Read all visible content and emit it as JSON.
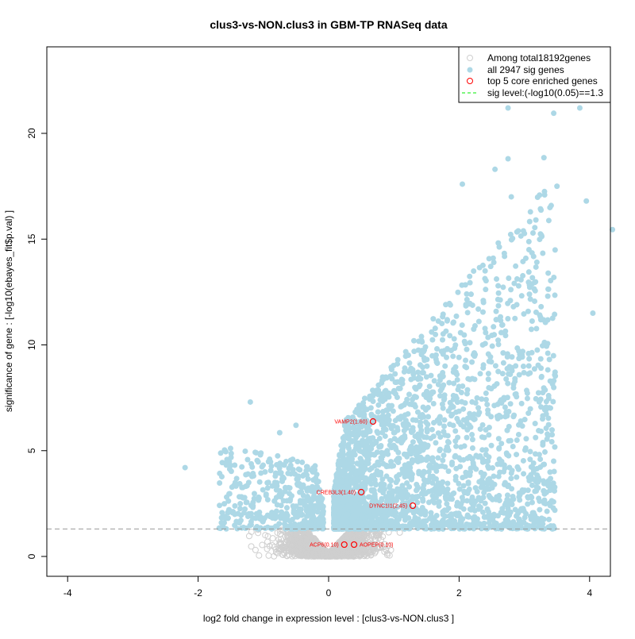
{
  "chart_data": {
    "type": "scatter",
    "title": "clus3-vs-NON.clus3 in GBM-TP RNASeq data",
    "xlabel": "log2 fold change in expression level : [clus3-vs-NON.clus3 ]",
    "ylabel": "significance of gene : [-log10(ebayes_fit$p.val) ]",
    "xlim": [
      -4.3,
      4.3
    ],
    "ylim": [
      -0.9,
      22.2
    ],
    "xticks": [
      -4,
      -2,
      0,
      2,
      4
    ],
    "yticks": [
      0,
      5,
      10,
      15,
      20
    ],
    "sig_level": 1.3,
    "total_genes": 18192,
    "sig_genes": 2947,
    "legend": {
      "placement": "top-right",
      "items": [
        "Among total18192genes",
        "all 2947 sig genes",
        "top 5 core enriched genes",
        "sig level:(-log10(0.05)==1.3"
      ]
    },
    "colors": {
      "nonsig": "#cfcfcf",
      "sig": "#add8e6",
      "core": "#ff0000",
      "siglevel_legend": "#00ee00",
      "siglevel_line": "#999999"
    },
    "notable_points": [
      [
        2.75,
        21.2
      ],
      [
        3.45,
        20.95
      ],
      [
        3.85,
        21.2
      ],
      [
        3.3,
        18.85
      ],
      [
        2.55,
        18.3
      ],
      [
        2.75,
        18.8
      ],
      [
        2.05,
        17.6
      ],
      [
        3.95,
        16.8
      ],
      [
        4.35,
        15.45
      ],
      [
        -2.2,
        4.2
      ],
      [
        -1.2,
        7.3
      ],
      [
        4.05,
        11.5
      ],
      [
        3.5,
        17.5
      ],
      [
        2.8,
        17.0
      ],
      [
        -0.5,
        6.2
      ],
      [
        -0.75,
        5.85
      ]
    ],
    "core_genes": [
      {
        "label": "VAMP2(1.60)",
        "x": 0.68,
        "y": 6.38
      },
      {
        "label": "CREB3L3(1.40)",
        "x": 0.5,
        "y": 3.04
      },
      {
        "label": "DYNC1I1(2.45)",
        "x": 1.29,
        "y": 2.4
      },
      {
        "label": "ACP6(0.10)",
        "x": 0.24,
        "y": 0.56
      },
      {
        "label": "AOPEP(0.10)",
        "x": 0.39,
        "y": 0.56
      }
    ]
  }
}
